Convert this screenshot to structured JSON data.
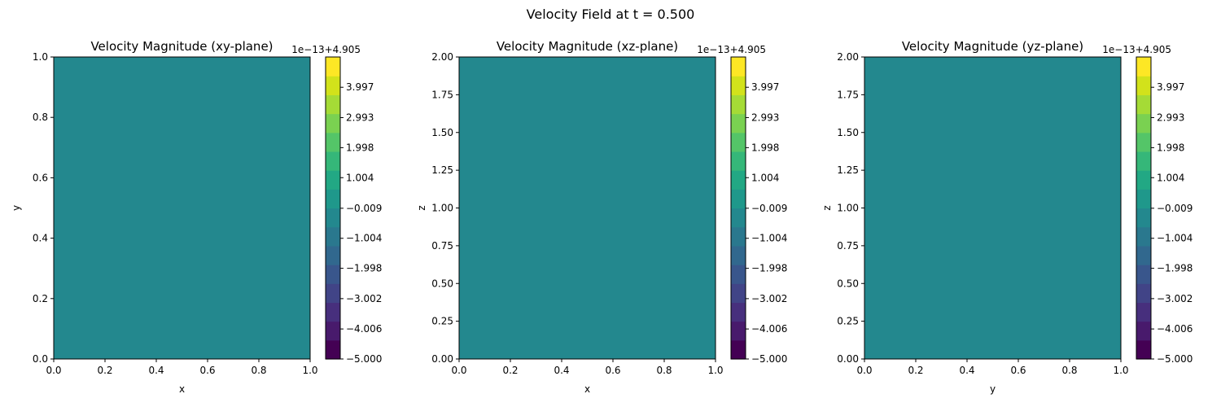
{
  "figure": {
    "suptitle": "Velocity Field at t = 0.500",
    "field_color": "#21908d"
  },
  "chart_data": [
    {
      "type": "heatmap",
      "title": "Velocity Magnitude (xy-plane)",
      "xlabel": "x",
      "ylabel": "y",
      "xlim": [
        0,
        1
      ],
      "ylim": [
        0,
        1
      ],
      "x_ticks": [
        "0.0",
        "0.2",
        "0.4",
        "0.6",
        "0.8",
        "1.0"
      ],
      "y_ticks": [
        "0.0",
        "0.2",
        "0.4",
        "0.6",
        "0.8",
        "1.0"
      ],
      "field_value": 4.905,
      "colorbar": {
        "offset_label": "1e−13+4.905",
        "ticks": [
          "−5.000",
          "−4.006",
          "−3.002",
          "−1.998",
          "−1.004",
          "−0.009",
          "1.004",
          "1.998",
          "2.993",
          "3.997"
        ]
      },
      "grid": false
    },
    {
      "type": "heatmap",
      "title": "Velocity Magnitude (xz-plane)",
      "xlabel": "x",
      "ylabel": "z",
      "xlim": [
        0,
        1
      ],
      "ylim": [
        0,
        2
      ],
      "x_ticks": [
        "0.0",
        "0.2",
        "0.4",
        "0.6",
        "0.8",
        "1.0"
      ],
      "y_ticks": [
        "0.00",
        "0.25",
        "0.50",
        "0.75",
        "1.00",
        "1.25",
        "1.50",
        "1.75",
        "2.00"
      ],
      "field_value": 4.905,
      "colorbar": {
        "offset_label": "1e−13+4.905",
        "ticks": [
          "−5.000",
          "−4.006",
          "−3.002",
          "−1.998",
          "−1.004",
          "−0.009",
          "1.004",
          "1.998",
          "2.993",
          "3.997"
        ]
      },
      "grid": false
    },
    {
      "type": "heatmap",
      "title": "Velocity Magnitude (yz-plane)",
      "xlabel": "y",
      "ylabel": "z",
      "xlim": [
        0,
        1
      ],
      "ylim": [
        0,
        2
      ],
      "x_ticks": [
        "0.0",
        "0.2",
        "0.4",
        "0.6",
        "0.8",
        "1.0"
      ],
      "y_ticks": [
        "0.00",
        "0.25",
        "0.50",
        "0.75",
        "1.00",
        "1.25",
        "1.50",
        "1.75",
        "2.00"
      ],
      "field_value": 4.905,
      "colorbar": {
        "offset_label": "1e−13+4.905",
        "ticks": [
          "−5.000",
          "−4.006",
          "−3.002",
          "−1.998",
          "−1.004",
          "−0.009",
          "1.004",
          "1.998",
          "2.993",
          "3.997"
        ]
      },
      "grid": false
    }
  ],
  "colormap": {
    "name": "viridis",
    "levels": [
      "#440154",
      "#481a6c",
      "#472f7d",
      "#414487",
      "#39568c",
      "#31688e",
      "#2a788e",
      "#23888e",
      "#1f988b",
      "#22a884",
      "#35b779",
      "#54c568",
      "#7ad151",
      "#a5db36",
      "#d2e21b",
      "#fde725"
    ]
  }
}
